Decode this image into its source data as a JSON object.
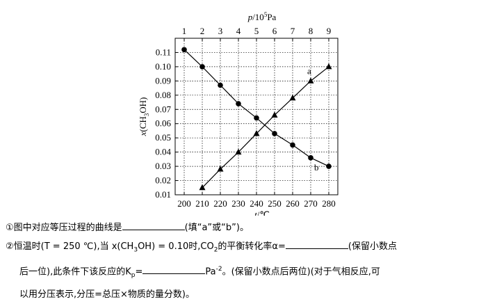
{
  "chart_data": {
    "type": "line",
    "xlabel": [
      "t",
      "/℃"
    ],
    "x2label": [
      "p",
      "/10",
      "5",
      "Pa"
    ],
    "ylabel": [
      "x",
      "(CH",
      "3",
      "OH)"
    ],
    "xlim": [
      195,
      285
    ],
    "xticks": [
      200,
      210,
      220,
      230,
      240,
      250,
      260,
      270,
      280
    ],
    "x2lim": [
      0.5,
      9.5
    ],
    "x2ticks": [
      1,
      2,
      3,
      4,
      5,
      6,
      7,
      8,
      9
    ],
    "ylim": [
      0.01,
      0.12
    ],
    "yticks": [
      0.01,
      0.02,
      0.03,
      0.04,
      0.05,
      0.06,
      0.07,
      0.08,
      0.09,
      {
        "value": 0.1,
        "label": "0.10"
      },
      0.11
    ],
    "grid": true,
    "color": "#000000",
    "series": [
      {
        "name": "a",
        "marker": "triangle",
        "axis": "x2",
        "x": [
          2,
          3,
          4,
          5,
          6,
          7,
          8,
          9
        ],
        "values": [
          0.015,
          0.028,
          0.04,
          0.053,
          0.066,
          0.078,
          0.09,
          0.1
        ]
      },
      {
        "name": "b",
        "marker": "circle",
        "x": [
          200,
          210,
          220,
          230,
          240,
          250,
          260,
          270,
          280
        ],
        "values": [
          0.112,
          0.1,
          0.087,
          0.074,
          0.064,
          0.053,
          0.045,
          0.036,
          0.03
        ]
      }
    ]
  },
  "text": {
    "lines": [
      [
        "①图中对应等压过程的曲线是",
        null,
        "(填“a”或“b”)。"
      ],
      [
        "②恒温时(T = 250 ℃),当 x(CH",
        {
          "sub": "3"
        },
        "OH) = 0.10时,CO",
        {
          "sub": "2"
        },
        "的平衡转化率α=",
        null,
        "(保留小数点"
      ],
      [
        "后一位),此条件下该反应的K",
        {
          "sub": "p"
        },
        "=",
        null,
        "Pa",
        {
          "sup": "-2"
        },
        "。(保留小数点后两位)(对于气相反应,可"
      ],
      [
        "以用分压表示,分压=总压×物质的量分数)。"
      ]
    ]
  }
}
